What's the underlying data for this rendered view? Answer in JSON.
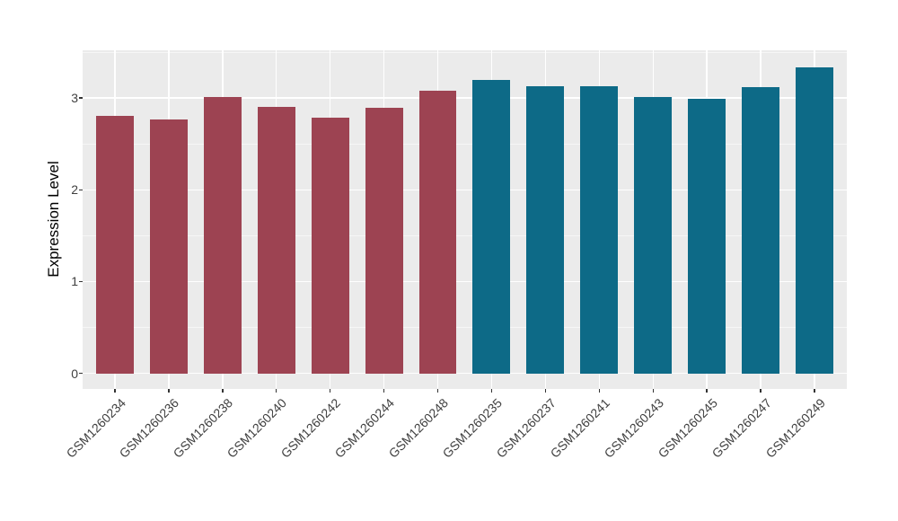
{
  "chart_data": {
    "type": "bar",
    "title": "",
    "xlabel": "",
    "ylabel": "Expression Level",
    "categories": [
      "GSM1260234",
      "GSM1260236",
      "GSM1260238",
      "GSM1260240",
      "GSM1260242",
      "GSM1260244",
      "GSM1260248",
      "GSM1260235",
      "GSM1260237",
      "GSM1260241",
      "GSM1260243",
      "GSM1260245",
      "GSM1260247",
      "GSM1260249"
    ],
    "values": [
      2.81,
      2.77,
      3.01,
      2.9,
      2.79,
      2.89,
      3.08,
      3.2,
      3.13,
      3.13,
      3.01,
      2.99,
      3.12,
      3.33
    ],
    "bar_colors": [
      "#9D4352",
      "#9D4352",
      "#9D4352",
      "#9D4352",
      "#9D4352",
      "#9D4352",
      "#9D4352",
      "#0D6A87",
      "#0D6A87",
      "#0D6A87",
      "#0D6A87",
      "#0D6A87",
      "#0D6A87",
      "#0D6A87"
    ],
    "group_colors": {
      "left_group": "#9D4352",
      "right_group": "#0D6A87"
    },
    "yticks": [
      "0",
      "1",
      "2",
      "3"
    ],
    "ytick_values": [
      0,
      1,
      2,
      3
    ],
    "ytick_minor_values": [
      0.5,
      1.5,
      2.5,
      3.5
    ],
    "ylim": [
      -0.17,
      3.52
    ],
    "grid": true,
    "legend_position": "none",
    "panel_bg": "#EBEBEB",
    "grid_color": "#FFFFFF",
    "axis_text_color": "#404040",
    "bar_width_fraction": 0.7
  }
}
